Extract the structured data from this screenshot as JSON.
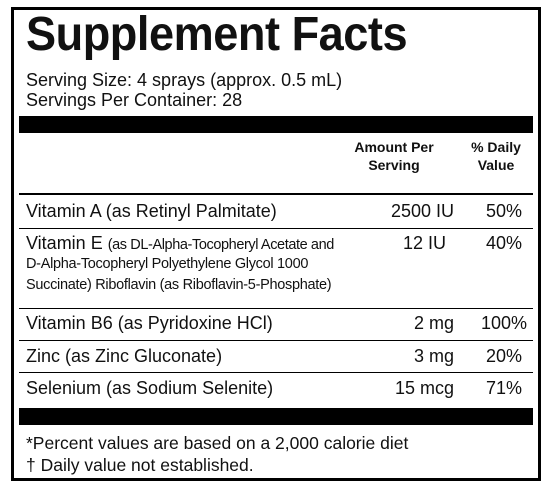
{
  "title": "Supplement Facts",
  "serving_size": "Serving Size: 4 sprays (approx. 0.5 mL)",
  "servings_per_container": "Servings Per Container: 28",
  "columns": {
    "amount_line1": "Amount Per",
    "amount_line2": "Serving",
    "dv_line1": "% Daily",
    "dv_line2": "Value"
  },
  "rows": [
    {
      "name": "Vitamin A (as Retinyl Palmitate)",
      "amount": "2500 IU",
      "dv": "50%"
    },
    {
      "name": "Vitamin E",
      "name_detail": "(as DL-Alpha-Tocopheryl Acetate and",
      "name_detail_2": "D-Alpha-Tocopheryl Polyethylene Glycol 1000",
      "name_detail_3": "Succinate) Riboflavin (as Riboflavin-5-Phosphate)",
      "amount": "12 IU",
      "dv": "40%"
    },
    {
      "name": "Vitamin B6 (as Pyridoxine HCl)",
      "amount": "2 mg",
      "dv": "100%"
    },
    {
      "name": "Zinc (as Zinc Gluconate)",
      "amount": "3 mg",
      "dv": "20%"
    },
    {
      "name": "Selenium (as Sodium Selenite)",
      "amount": "15 mcg",
      "dv": "71%"
    }
  ],
  "footnotes": [
    "*Percent values are based on a 2,000 calorie diet",
    "† Daily value not established."
  ]
}
